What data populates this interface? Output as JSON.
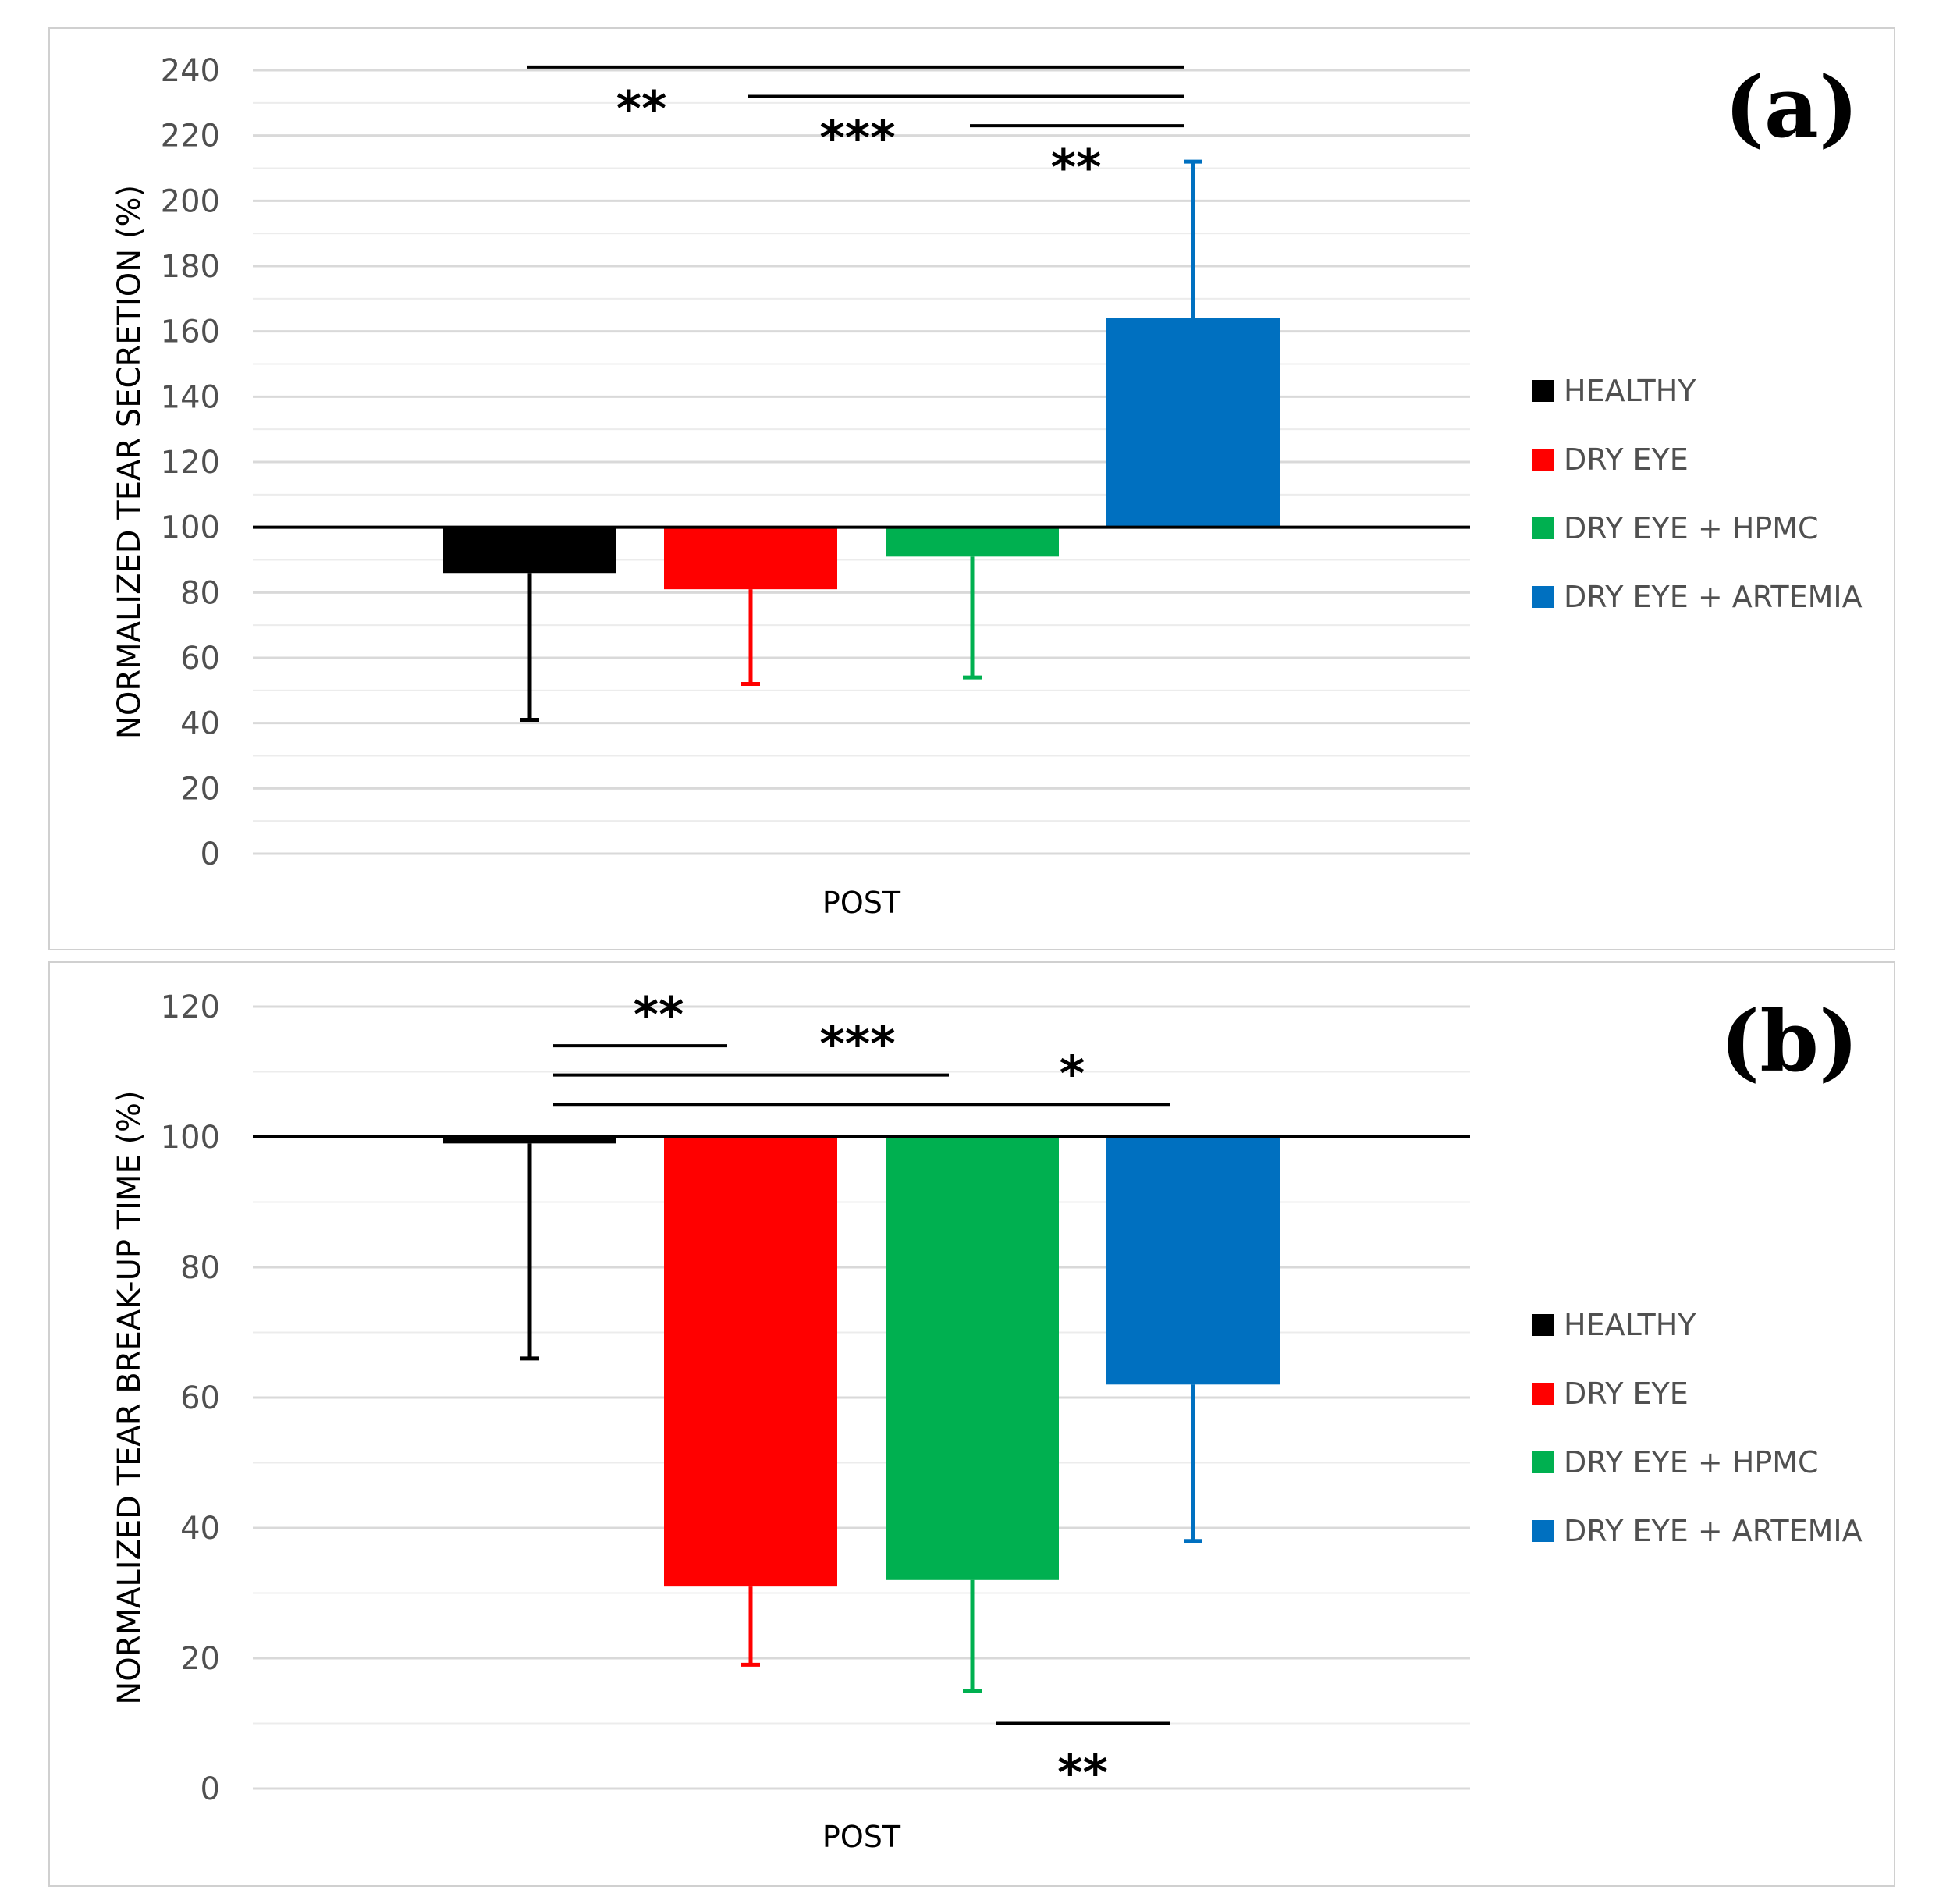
{
  "colors": {
    "healthy": "#000000",
    "dry_eye": "#ff0000",
    "hpmc": "#00b050",
    "artemia": "#0070c0",
    "grid": "#d9d9d9"
  },
  "legend": [
    "HEALTHY",
    "DRY EYE",
    "DRY EYE + HPMC",
    "DRY EYE + ARTEMIA"
  ],
  "chart_data": [
    {
      "panel_label": "(a)",
      "type": "bar",
      "ylabel": "NORMALIZED TEAR SECRETION (%)",
      "xlabel": "POST",
      "baseline": 100,
      "ylim": [
        0,
        240
      ],
      "yticks": [
        "0",
        "20",
        "40",
        "60",
        "80",
        "100",
        "120",
        "140",
        "160",
        "180",
        "200",
        "220",
        "240"
      ],
      "series": [
        {
          "name": "HEALTHY",
          "value": 86,
          "error_end": 41
        },
        {
          "name": "DRY EYE",
          "value": 81,
          "error_end": 52
        },
        {
          "name": "DRY EYE + HPMC",
          "value": 91,
          "error_end": 54
        },
        {
          "name": "DRY EYE + ARTEMIA",
          "value": 164,
          "error_end": 212
        }
      ],
      "significance": [
        {
          "from": 0,
          "to": 3,
          "y": 241,
          "label": "**"
        },
        {
          "from": 1,
          "to": 3,
          "y": 232,
          "label": "***"
        },
        {
          "from": 2,
          "to": 3,
          "y": 223,
          "label": "**"
        }
      ]
    },
    {
      "panel_label": "(b)",
      "type": "bar",
      "ylabel": "NORMALIZED TEAR BREAK-UP TIME (%)",
      "xlabel": "POST",
      "baseline": 100,
      "ylim": [
        0,
        120
      ],
      "yticks": [
        "0",
        "20",
        "40",
        "60",
        "80",
        "100",
        "120"
      ],
      "series": [
        {
          "name": "HEALTHY",
          "value": 99,
          "error_end": 66
        },
        {
          "name": "DRY EYE",
          "value": 31,
          "error_end": 19
        },
        {
          "name": "DRY EYE + HPMC",
          "value": 32,
          "error_end": 15
        },
        {
          "name": "DRY EYE + ARTEMIA",
          "value": 62,
          "error_end": 38
        }
      ],
      "significance": [
        {
          "from": 0,
          "to": 1,
          "y": 114,
          "label": "**"
        },
        {
          "from": 0,
          "to": 2,
          "y": 109.5,
          "label": "***"
        },
        {
          "from": 0,
          "to": 3,
          "y": 105,
          "label": "*"
        },
        {
          "from": 2,
          "to": 3,
          "y": 10,
          "label": "**"
        }
      ]
    }
  ]
}
